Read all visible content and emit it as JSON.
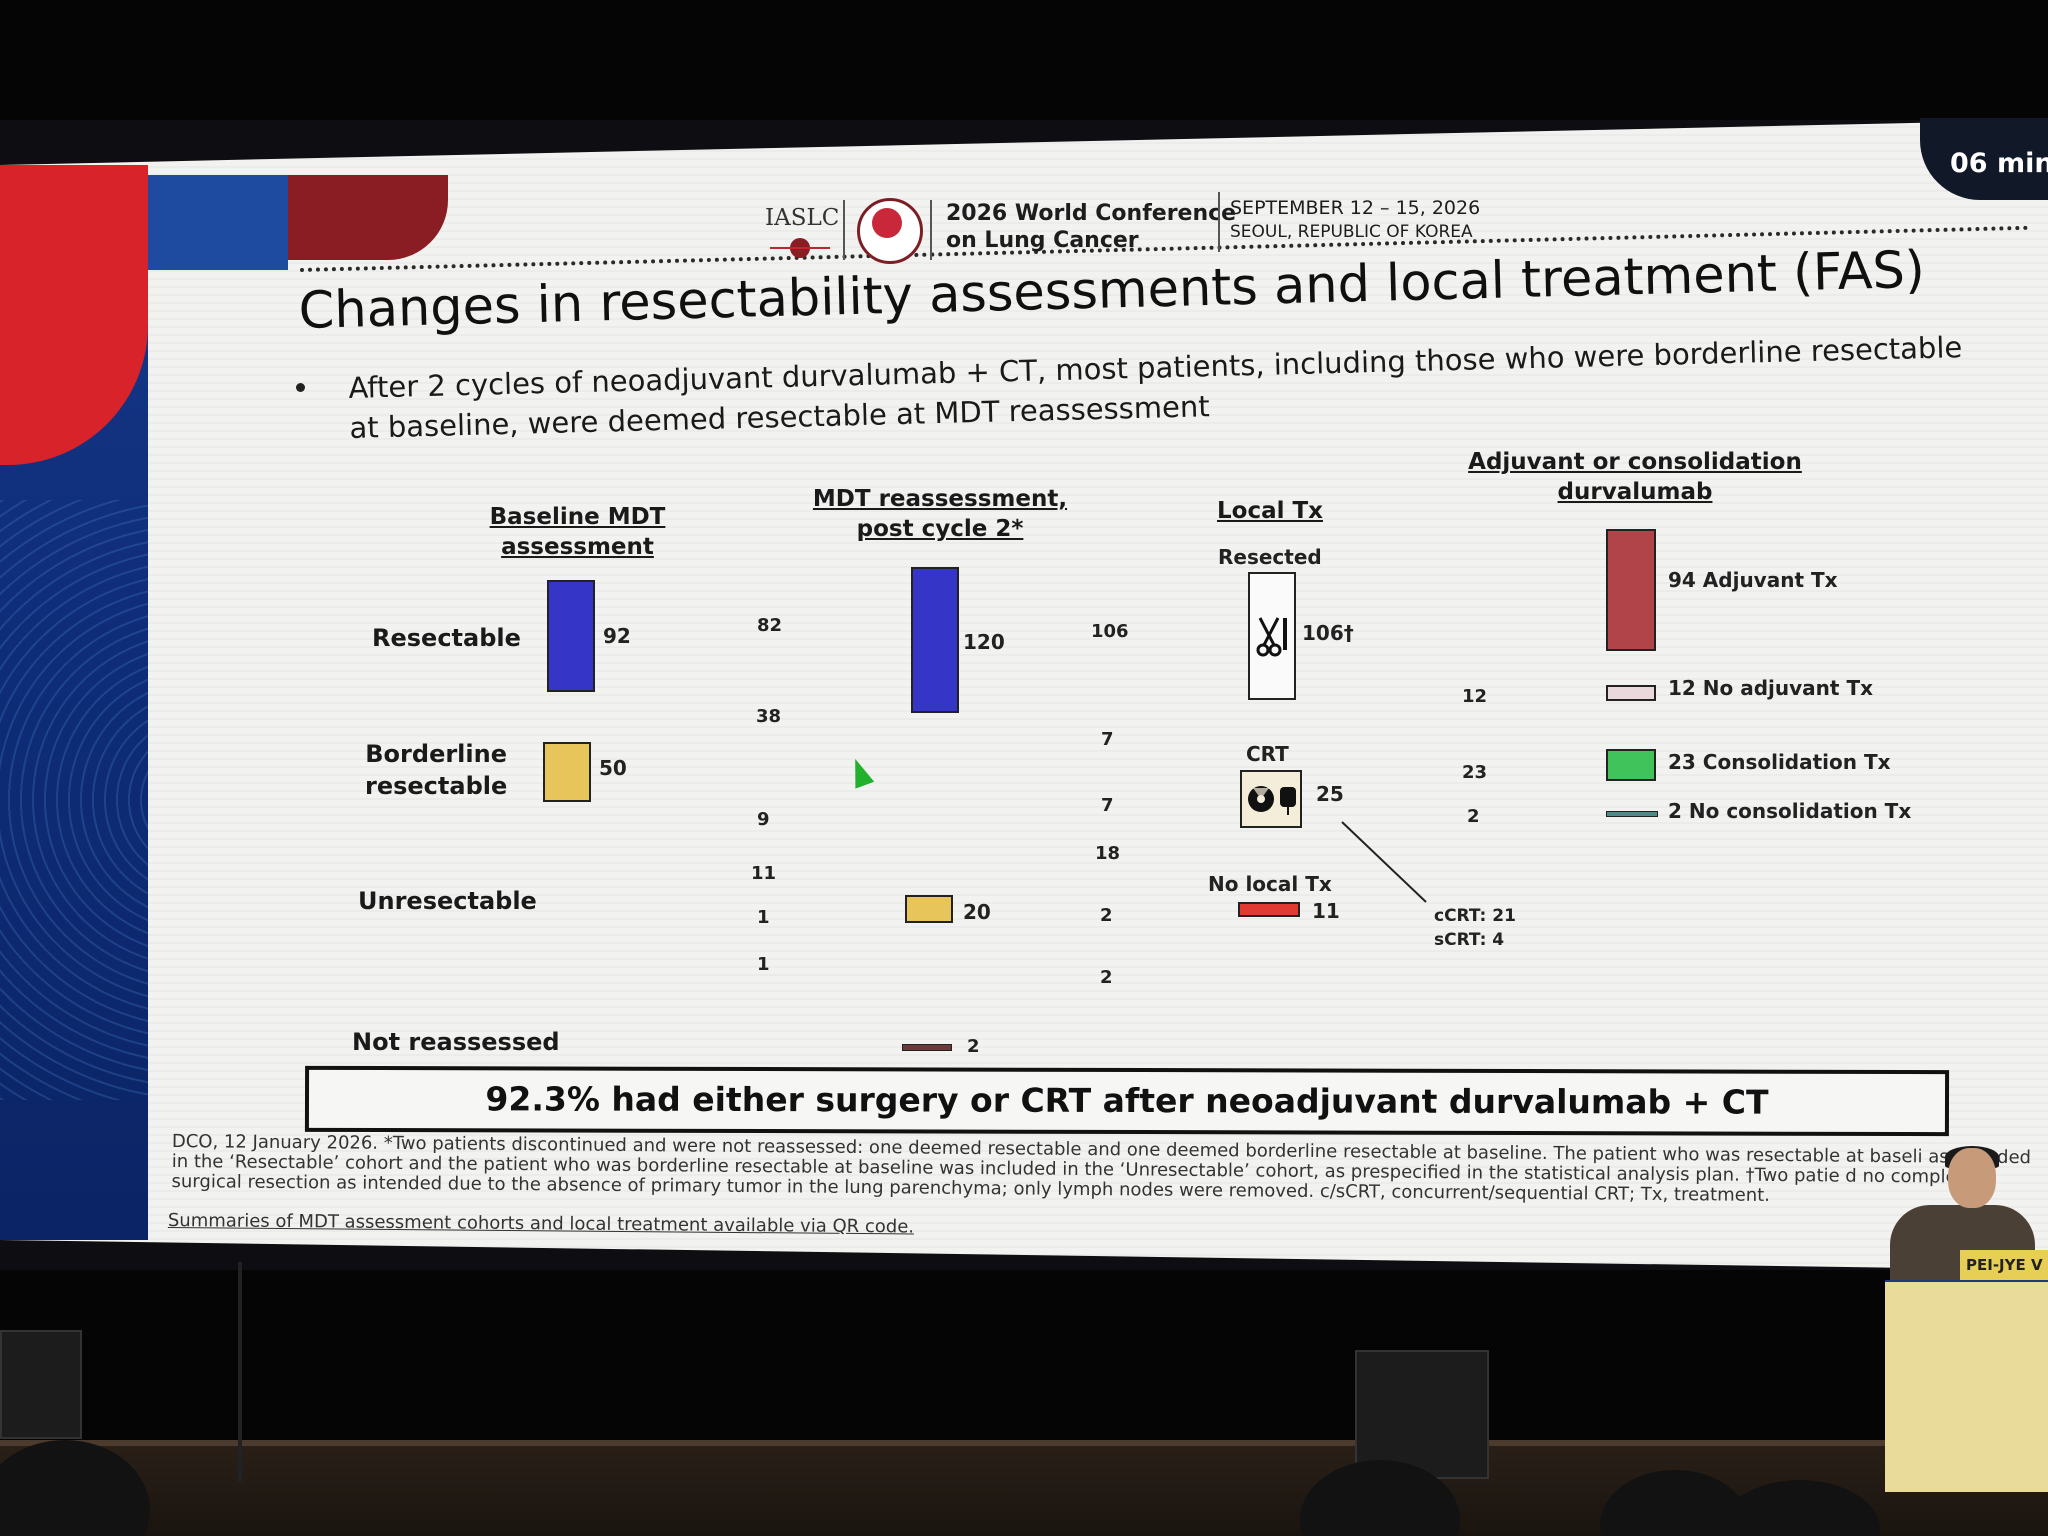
{
  "timer": "06 min",
  "header": {
    "org": "IASLC",
    "conference_line1": "2026 World Conference",
    "conference_line2": "on Lung Cancer",
    "dates": "SEPTEMBER 12 – 15, 2026",
    "location": "SEOUL, REPUBLIC OF KOREA"
  },
  "title": "Changes in resectability assessments and local treatment (FAS)",
  "bullet": "After 2 cycles of neoadjuvant durvalumab + CT, most patients, including those who were borderline resectable at baseline, were deemed resectable at MDT reassessment",
  "columns": {
    "baseline_l1": "Baseline MDT",
    "baseline_l2": "assessment",
    "reassess_l1": "MDT reassessment,",
    "reassess_l2": "post cycle 2*",
    "local": "Local Tx",
    "adjuvant_l1": "Adjuvant or consolidation",
    "adjuvant_l2": "durvalumab"
  },
  "rows": {
    "resectable": "Resectable",
    "borderline_l1": "Borderline",
    "borderline_l2": "resectable",
    "unresectable": "Unresectable",
    "not_reassessed": "Not reassessed"
  },
  "values": {
    "baseline_resectable": "92",
    "baseline_borderline": "50",
    "flow_82": "82",
    "flow_38": "38",
    "flow_9": "9",
    "flow_11": "11",
    "flow_1a": "1",
    "flow_1b": "1",
    "reassess_resectable": "120",
    "reassess_unresectable": "20",
    "not_reassessed": "2",
    "flow_106": "106",
    "flow_7a": "7",
    "flow_7b": "7",
    "flow_18": "18",
    "flow_2a": "2",
    "flow_2b": "2",
    "resected_label": "Resected",
    "resected": "106†",
    "crt_label": "CRT",
    "crt": "25",
    "nolocal_label": "No local Tx",
    "nolocal": "11",
    "ccrt": "cCRT: 21",
    "scrt": "sCRT: 4",
    "flow_12": "12",
    "flow_23": "23",
    "flow_2c": "2",
    "adj_tx": "94 Adjuvant Tx",
    "no_adj": "12 No adjuvant Tx",
    "consol": "23 Consolidation Tx",
    "no_consol": "2 No consolidation Tx"
  },
  "colors": {
    "blue": "#3535c8",
    "yellow": "#e8c55a",
    "red_bar": "#e03a33",
    "maroon": "#b04448",
    "pink": "#e9d8dc",
    "green": "#3fc35a",
    "teal": "#4d8a88"
  },
  "banner": "92.3% had either surgery or CRT after neoadjuvant durvalumab + CT",
  "footnote": "DCO, 12 January 2026. *Two patients discontinued and were not reassessed: one deemed resectable and one deemed borderline resectable at baseline. The patient who was resectable at baseli  as included in the ‘Resectable’ cohort and the patient who was borderline resectable at baseline was included in the ‘Unresectable’ cohort, as prespecified in the statistical analysis plan. †Two patie  d no complete surgical resection as intended due to the absence of primary tumor in the lung parenchyma; only lymph nodes were removed. c/sCRT, concurrent/sequential CRT; Tx, treatment.",
  "footnote_link": "Summaries of MDT  assessment cohorts and local treatment available via QR code.",
  "nameplate": "PEI-JYE V",
  "icons": [
    "scissors-icon",
    "radiation-icon",
    "iv-bag-icon",
    "lung-logo-icon",
    "cursor-icon"
  ]
}
